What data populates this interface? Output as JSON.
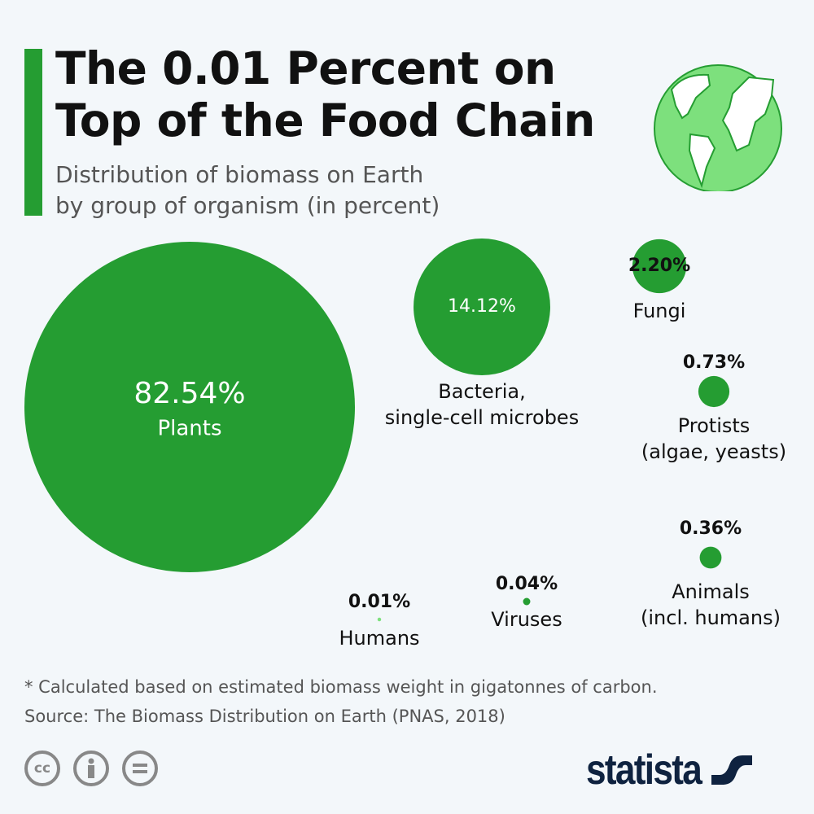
{
  "title": "The 0.01 Percent on Top of the Food Chain",
  "title_lines": [
    "The 0.01 Percent on",
    "Top of the Food Chain"
  ],
  "subtitle_lines": [
    "Distribution of biomass on Earth",
    "by group of organism (in percent)"
  ],
  "colors": {
    "accent": "#259d32",
    "highlight": "#7de07d",
    "background": "#f3f7fa",
    "brand": "#0f2340"
  },
  "chart_data": {
    "type": "bubble",
    "unit": "%",
    "items": [
      {
        "name": "Plants",
        "value": 82.54,
        "label": "82.54%",
        "lines": [
          "Plants"
        ],
        "color": "#259d32"
      },
      {
        "name": "Bacteria, single-cell microbes",
        "value": 14.12,
        "label": "14.12%",
        "lines": [
          "Bacteria,",
          "single-cell microbes"
        ],
        "color": "#259d32"
      },
      {
        "name": "Fungi",
        "value": 2.2,
        "label": "2.20%",
        "lines": [
          "Fungi"
        ],
        "color": "#259d32"
      },
      {
        "name": "Protists (algae, yeasts)",
        "value": 0.73,
        "label": "0.73%",
        "lines": [
          "Protists",
          "(algae, yeasts)"
        ],
        "color": "#259d32"
      },
      {
        "name": "Animals (incl. humans)",
        "value": 0.36,
        "label": "0.36%",
        "lines": [
          "Animals",
          "(incl. humans)"
        ],
        "color": "#259d32"
      },
      {
        "name": "Viruses",
        "value": 0.04,
        "label": "0.04%",
        "lines": [
          "Viruses"
        ],
        "color": "#259d32"
      },
      {
        "name": "Humans",
        "value": 0.01,
        "label": "0.01%",
        "lines": [
          "Humans"
        ],
        "color": "#7de07d"
      }
    ]
  },
  "footnote": "* Calculated based on estimated biomass weight in gigatonnes of carbon.",
  "source": "Source: The Biomass Distribution on Earth (PNAS, 2018)",
  "license_icons": [
    "cc-icon",
    "attribution-icon",
    "no-derivatives-icon"
  ],
  "license_cc_text": "cc",
  "brand": "statista"
}
